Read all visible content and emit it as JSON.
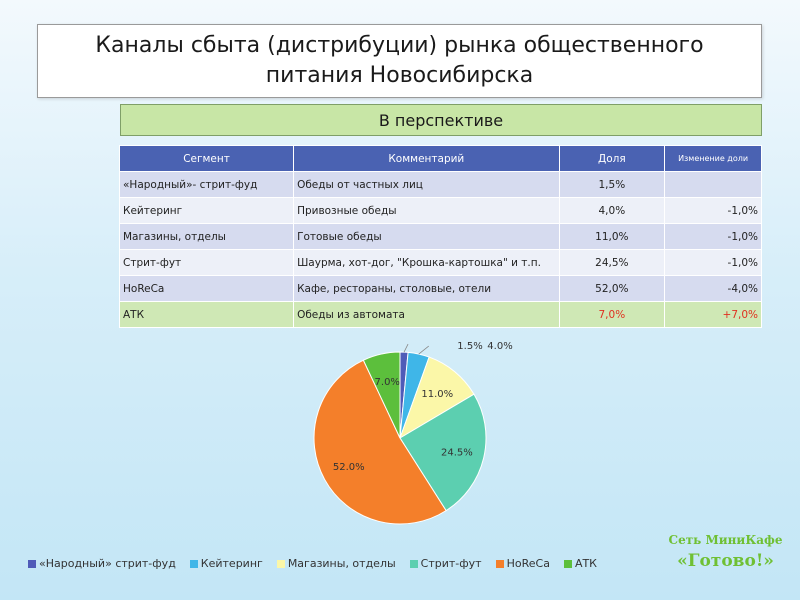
{
  "header": {
    "title": "Каналы сбыта (дистрибуции) рынка общественного питания Новосибирска",
    "subtitle": "В перспективе"
  },
  "table": {
    "headers": [
      "Сегмент",
      "Комментарий",
      "Доля",
      "Изменение доли"
    ],
    "rows": [
      {
        "segment": "«Народный»- стрит-фуд",
        "comment": "Обеды от частных лиц",
        "share": "1,5%",
        "change": ""
      },
      {
        "segment": "Кейтеринг",
        "comment": "Привозные обеды",
        "share": "4,0%",
        "change": "-1,0%"
      },
      {
        "segment": "Магазины, отделы",
        "comment": "Готовые обеды",
        "share": "11,0%",
        "change": "-1,0%"
      },
      {
        "segment": "Стрит-фут",
        "comment": "Шаурма, хот-дог, \"Крошка-картошка\" и т.п.",
        "share": "24,5%",
        "change": "-1,0%"
      },
      {
        "segment": "HoReCa",
        "comment": "Кафе, рестораны, столовые, отели",
        "share": "52,0%",
        "change": "-4,0%"
      },
      {
        "segment": "АТК",
        "comment": "Обеды из автомата",
        "share": "7,0%",
        "change": "+7,0%"
      }
    ]
  },
  "chart_data": {
    "type": "pie",
    "categories": [
      "«Народный» стрит-фуд",
      "Кейтеринг",
      "Магазины, отделы",
      "Стрит-фут",
      "HoReCa",
      "АТК"
    ],
    "values": [
      1.5,
      4.0,
      11.0,
      24.5,
      52.0,
      7.0
    ],
    "labels": [
      "1.5%",
      "4.0%",
      "11.0%",
      "24.5%",
      "52.0%",
      "7.0%"
    ],
    "colors": [
      "#4f5bb8",
      "#3fb6e8",
      "#fbf7a8",
      "#5ccfb0",
      "#f47f2a",
      "#5cbf3c"
    ],
    "legend": "bottom"
  },
  "brand": {
    "line1": "Сеть МиниКафе",
    "line2": "«Готово!»"
  }
}
